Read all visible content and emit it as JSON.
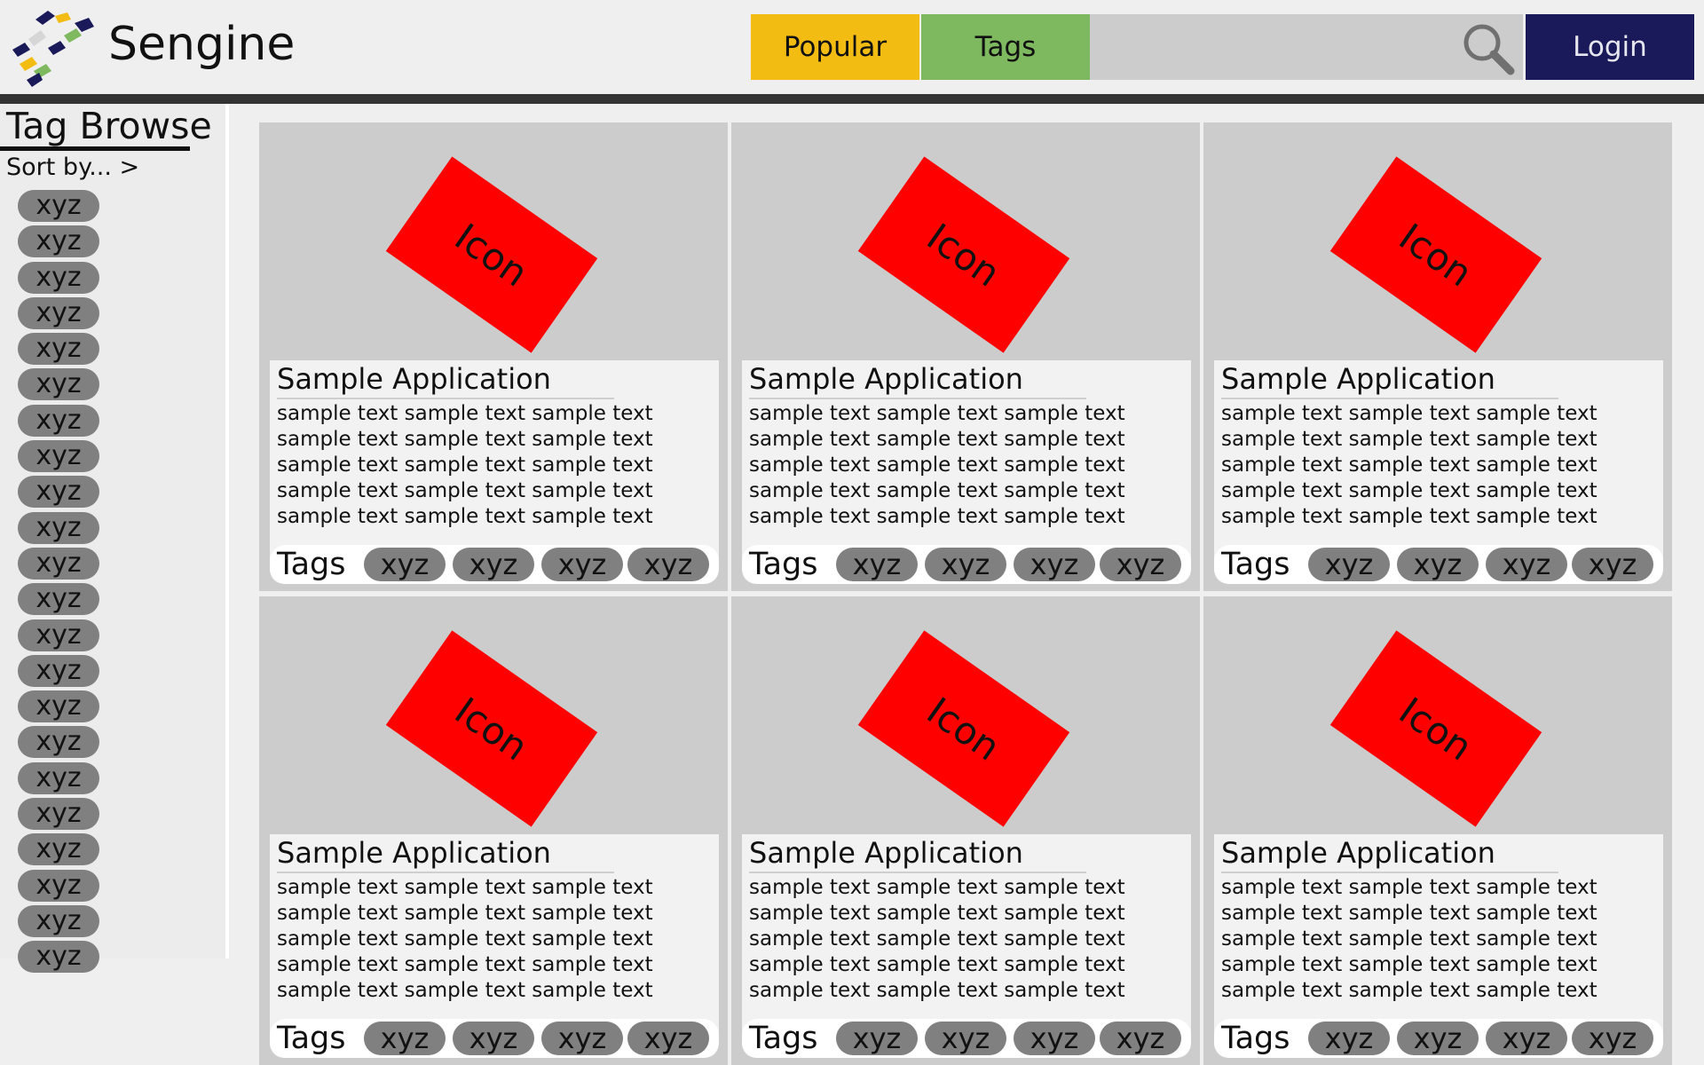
{
  "header": {
    "brand": "Sengine",
    "nav": {
      "popular": "Popular",
      "tags": "Tags"
    },
    "search": {
      "value": "",
      "placeholder": ""
    },
    "login_label": "Login",
    "colors": {
      "popular": "#f2bc13",
      "tags": "#7eb85f",
      "login": "#1a1a5a",
      "bar": "#333333"
    }
  },
  "sidebar": {
    "title": "Tag Browse",
    "sort_label": "Sort by... >",
    "tags": [
      "xyz",
      "xyz",
      "xyz",
      "xyz",
      "xyz",
      "xyz",
      "xyz",
      "xyz",
      "xyz",
      "xyz",
      "xyz",
      "xyz",
      "xyz",
      "xyz",
      "xyz",
      "xyz",
      "xyz",
      "xyz",
      "xyz",
      "xyz",
      "xyz",
      "xyz"
    ]
  },
  "cards": [
    {
      "icon": "Icon",
      "title": "Sample Application",
      "desc": "sample text sample text sample text sample text sample text sample text sample text sample text sample text sample text sample text sample text sample text sample text sample text",
      "tags_label": "Tags",
      "tags": [
        "xyz",
        "xyz",
        "xyz",
        "xyz"
      ]
    },
    {
      "icon": "Icon",
      "title": "Sample Application",
      "desc": "sample text sample text sample text sample text sample text sample text sample text sample text sample text sample text sample text sample text sample text sample text sample text",
      "tags_label": "Tags",
      "tags": [
        "xyz",
        "xyz",
        "xyz",
        "xyz"
      ]
    },
    {
      "icon": "Icon",
      "title": "Sample Application",
      "desc": "sample text sample text sample text sample text sample text sample text sample text sample text sample text sample text sample text sample text sample text sample text sample text",
      "tags_label": "Tags",
      "tags": [
        "xyz",
        "xyz",
        "xyz",
        "xyz"
      ]
    },
    {
      "icon": "Icon",
      "title": "Sample Application",
      "desc": "sample text sample text sample text sample text sample text sample text sample text sample text sample text sample text sample text sample text sample text sample text sample text",
      "tags_label": "Tags",
      "tags": [
        "xyz",
        "xyz",
        "xyz",
        "xyz"
      ]
    },
    {
      "icon": "Icon",
      "title": "Sample Application",
      "desc": "sample text sample text sample text sample text sample text sample text sample text sample text sample text sample text sample text sample text sample text sample text sample text",
      "tags_label": "Tags",
      "tags": [
        "xyz",
        "xyz",
        "xyz",
        "xyz"
      ]
    },
    {
      "icon": "Icon",
      "title": "Sample Application",
      "desc": "sample text sample text sample text sample text sample text sample text sample text sample text sample text sample text sample text sample text sample text sample text sample text",
      "tags_label": "Tags",
      "tags": [
        "xyz",
        "xyz",
        "xyz",
        "xyz"
      ]
    }
  ]
}
